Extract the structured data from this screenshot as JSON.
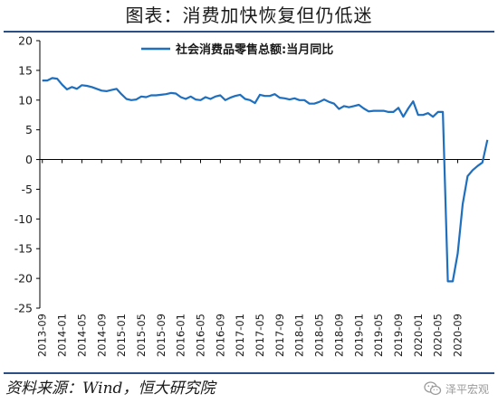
{
  "figure": {
    "title": "图表：消费加快恢复但仍低迷",
    "source": "资料来源：Wind，恒大研究院",
    "watermark": "泽平宏观",
    "watermark_icon": "wechat-icon"
  },
  "chart_data": {
    "type": "line",
    "title": "",
    "xlabel": "",
    "ylabel": "",
    "ylim": [
      -25,
      20
    ],
    "yticks": [
      -25,
      -20,
      -15,
      -10,
      -5,
      0,
      5,
      10,
      15,
      20
    ],
    "grid": false,
    "legend_position": "top-center",
    "line_color": "#1f6fbf",
    "tick_labels": [
      "2013-09",
      "2014-01",
      "2014-05",
      "2014-09",
      "2015-01",
      "2015-05",
      "2015-09",
      "2016-01",
      "2016-05",
      "2016-09",
      "2017-01",
      "2017-05",
      "2017-09",
      "2018-01",
      "2018-05",
      "2018-09",
      "2019-01",
      "2019-05",
      "2019-09",
      "2020-01",
      "2020-05",
      "2020-09"
    ],
    "series": [
      {
        "name": "社会消费品零售总额:当月同比",
        "start": "2013-09",
        "frequency": "monthly",
        "values": [
          13.3,
          13.3,
          13.7,
          13.6,
          12.6,
          11.8,
          12.2,
          11.9,
          12.5,
          12.4,
          12.2,
          11.9,
          11.6,
          11.5,
          11.7,
          11.9,
          11.0,
          10.2,
          10.0,
          10.1,
          10.6,
          10.5,
          10.8,
          10.8,
          10.9,
          11.0,
          11.2,
          11.1,
          10.5,
          10.2,
          10.6,
          10.1,
          10.0,
          10.5,
          10.2,
          10.6,
          10.8,
          10.0,
          10.4,
          10.7,
          10.9,
          10.2,
          10.0,
          9.5,
          10.9,
          10.7,
          10.7,
          11.0,
          10.4,
          10.3,
          10.1,
          10.3,
          10.0,
          10.0,
          9.4,
          9.4,
          9.7,
          10.1,
          9.7,
          9.4,
          8.5,
          9.0,
          8.8,
          9.0,
          9.2,
          8.6,
          8.1,
          8.2,
          8.2,
          8.2,
          8.0,
          8.0,
          8.7,
          7.2,
          8.6,
          9.8,
          7.5,
          7.5,
          7.8,
          7.2,
          8.0,
          8.0,
          -20.5,
          -20.5,
          -15.8,
          -7.5,
          -2.8,
          -1.8,
          -1.1,
          -0.5,
          3.3
        ]
      }
    ]
  }
}
